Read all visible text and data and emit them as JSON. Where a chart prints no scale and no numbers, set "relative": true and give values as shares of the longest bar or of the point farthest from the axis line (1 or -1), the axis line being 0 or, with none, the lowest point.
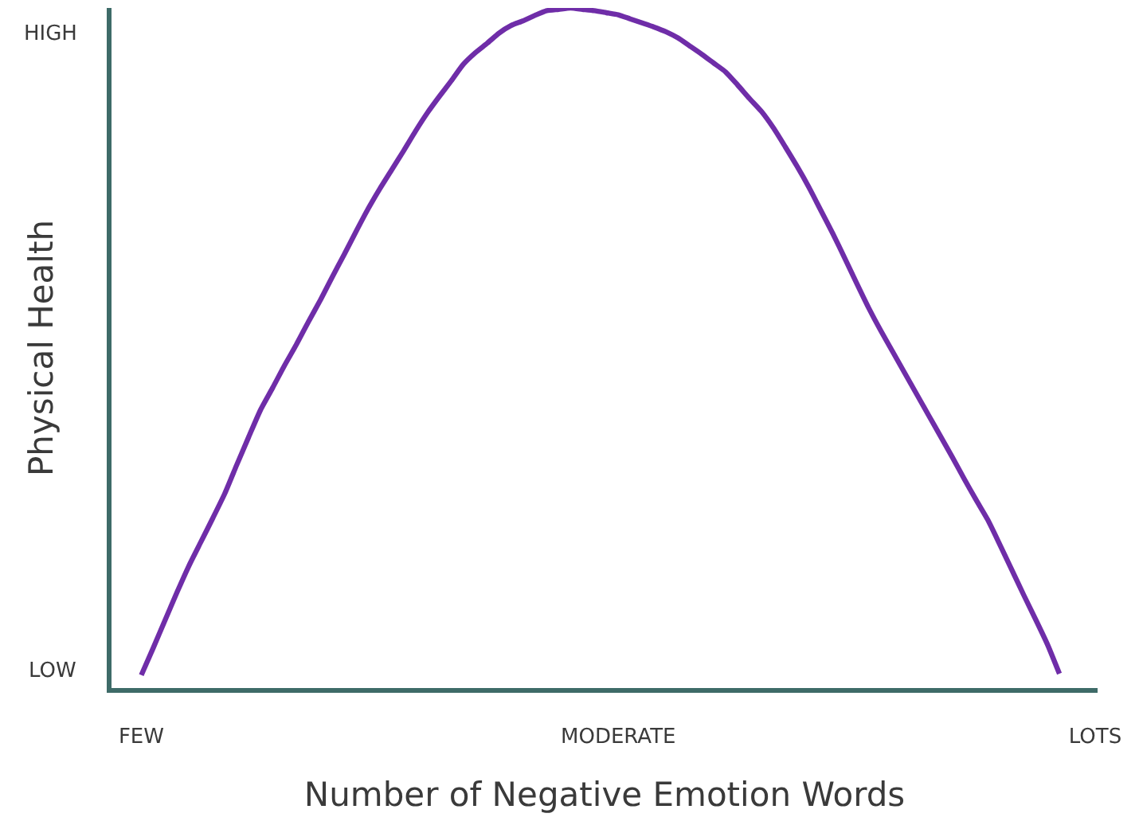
{
  "chart_data": {
    "type": "line",
    "relative": true,
    "xlabel": "Number of Negative Emotion Words",
    "ylabel": "Physical Health",
    "annotations": [
      "HIGH",
      "LOW"
    ],
    "categories": [
      "FEW",
      null,
      null,
      null,
      null,
      null,
      null,
      null,
      null,
      null,
      null,
      null,
      null,
      null,
      null,
      null,
      null,
      null,
      null,
      null,
      null,
      null,
      null,
      null,
      null,
      null,
      null,
      null,
      null,
      null,
      null,
      null,
      null,
      null,
      null,
      null,
      null,
      null,
      null,
      null,
      "MODERATE",
      null,
      null,
      null,
      null,
      null,
      null,
      null,
      null,
      null,
      null,
      null,
      null,
      null,
      null,
      null,
      null,
      null,
      null,
      null,
      null,
      null,
      null,
      null,
      null,
      null,
      null,
      null,
      null,
      null,
      null,
      null,
      null,
      null,
      null,
      null,
      null,
      null,
      null,
      null,
      "LOTS"
    ],
    "series": [
      {
        "color": "#6f2da8",
        "values": [
          0.019,
          0.059,
          0.1,
          0.141,
          0.18,
          0.215,
          0.25,
          0.286,
          0.328,
          0.369,
          0.409,
          0.441,
          0.474,
          0.505,
          0.538,
          0.57,
          0.604,
          0.637,
          0.671,
          0.704,
          0.734,
          0.762,
          0.79,
          0.819,
          0.846,
          0.87,
          0.893,
          0.917,
          0.934,
          0.948,
          0.963,
          0.974,
          0.981,
          0.989,
          0.996,
          0.998,
          1.0,
          0.998,
          0.996,
          0.993,
          0.99,
          0.984,
          0.978,
          0.972,
          0.965,
          0.956,
          0.944,
          0.932,
          0.919,
          0.906,
          0.887,
          0.867,
          0.848,
          0.824,
          0.796,
          0.767,
          0.736,
          0.702,
          0.668,
          0.632,
          0.595,
          0.559,
          0.526,
          0.495,
          0.464,
          0.433,
          0.402,
          0.371,
          0.34,
          0.308,
          0.277,
          0.247,
          0.211,
          0.174,
          0.137,
          0.101,
          0.064,
          0.021,
          null,
          null,
          null
        ]
      }
    ]
  }
}
